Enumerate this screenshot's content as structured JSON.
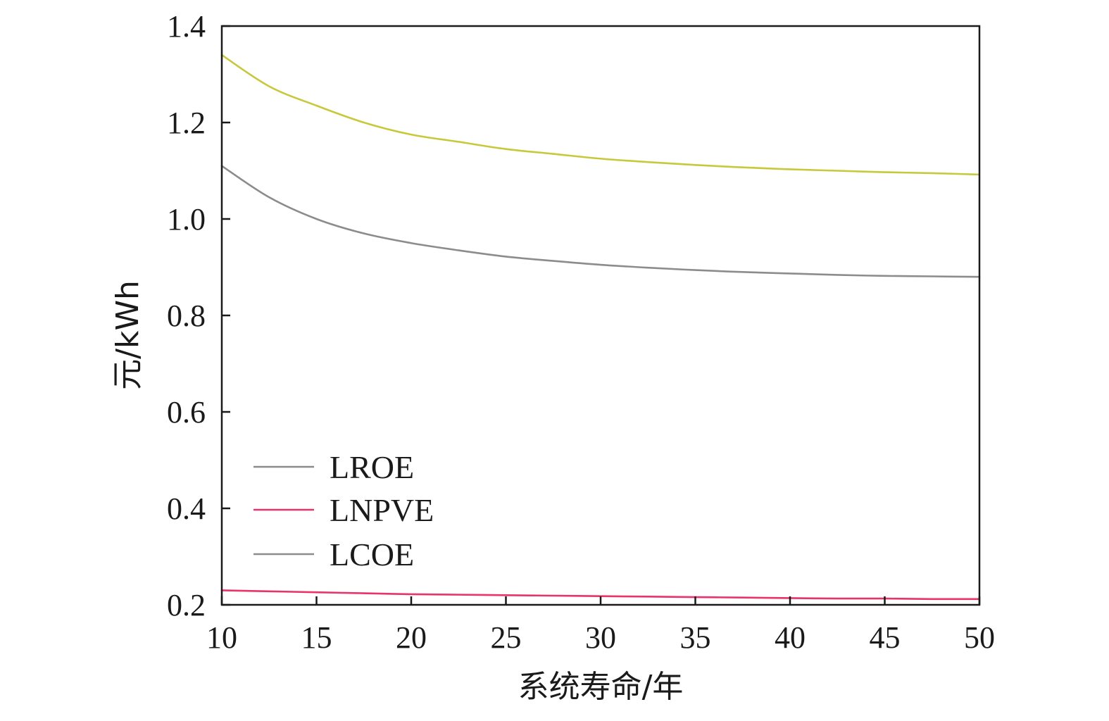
{
  "chart_data": {
    "type": "line",
    "title": "",
    "xlabel": "系统寿命/年",
    "ylabel": "元/kWh",
    "xlim": [
      10,
      50
    ],
    "ylim": [
      0.2,
      1.4
    ],
    "x_ticks": [
      10,
      15,
      20,
      25,
      30,
      35,
      40,
      45,
      50
    ],
    "y_ticks": [
      0.2,
      0.4,
      0.6,
      0.8,
      1.0,
      1.2,
      1.4
    ],
    "x_tick_labels": [
      "10",
      "15",
      "20",
      "25",
      "30",
      "35",
      "40",
      "45",
      "50"
    ],
    "y_tick_labels": [
      "0.2",
      "0.4",
      "0.6",
      "0.8",
      "1.0",
      "1.2",
      "1.4"
    ],
    "grid": false,
    "legend_position": "lower-left",
    "x": [
      10,
      12.5,
      15,
      17.5,
      20,
      22.5,
      25,
      27.5,
      30,
      32.5,
      35,
      37.5,
      40,
      42.5,
      45,
      47.5,
      50
    ],
    "series": [
      {
        "name": "LROE",
        "color": "#c8c83c",
        "legend_color": "#8c8c8c",
        "values": [
          1.34,
          1.275,
          1.235,
          1.2,
          1.175,
          1.16,
          1.145,
          1.135,
          1.125,
          1.118,
          1.112,
          1.107,
          1.103,
          1.1,
          1.097,
          1.095,
          1.092
        ]
      },
      {
        "name": "LNPVE",
        "color": "#e8336b",
        "legend_color": "#e8336b",
        "values": [
          0.23,
          0.228,
          0.226,
          0.224,
          0.222,
          0.221,
          0.22,
          0.219,
          0.218,
          0.217,
          0.216,
          0.215,
          0.214,
          0.213,
          0.213,
          0.212,
          0.212
        ]
      },
      {
        "name": "LCOE",
        "color": "#8c8c8c",
        "legend_color": "#8c8c8c",
        "values": [
          1.11,
          1.045,
          1.0,
          0.97,
          0.95,
          0.935,
          0.922,
          0.913,
          0.905,
          0.899,
          0.894,
          0.89,
          0.887,
          0.884,
          0.882,
          0.881,
          0.88
        ]
      }
    ]
  }
}
